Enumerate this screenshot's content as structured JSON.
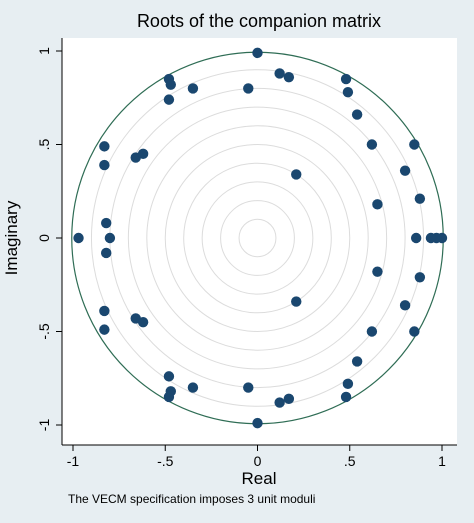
{
  "chart_data": {
    "type": "scatter",
    "title": "Roots of the companion matrix",
    "xlabel": "Real",
    "ylabel": "Imaginary",
    "note": "The VECM specification imposes 3 unit moduli",
    "xlim": [
      -1,
      1
    ],
    "ylim": [
      -1,
      1
    ],
    "x_ticks": [
      "-1",
      "-.5",
      "0",
      ".5",
      "1"
    ],
    "x_tick_values": [
      -1,
      -0.5,
      0,
      0.5,
      1
    ],
    "y_ticks": [
      "-1",
      "-.5",
      "0",
      ".5",
      "1"
    ],
    "y_tick_values": [
      -1,
      -0.5,
      0,
      0.5,
      1
    ],
    "unit_circle": true,
    "reference_circle_radii": [
      0.1,
      0.2,
      0.3,
      0.4,
      0.5,
      0.6,
      0.7,
      0.8,
      0.9
    ],
    "colors": {
      "background": "#e7eef2",
      "plot_area": "#ffffff",
      "marker": "#1a476f",
      "unit_circle": "#2f6d55",
      "reference_circles": "#dcdcdc"
    },
    "points": [
      {
        "x": 0.0,
        "y": 0.99
      },
      {
        "x": 0.0,
        "y": -0.99
      },
      {
        "x": 1.0,
        "y": 0.0
      },
      {
        "x": 0.97,
        "y": 0.0
      },
      {
        "x": 0.94,
        "y": 0.0
      },
      {
        "x": 0.86,
        "y": 0.0
      },
      {
        "x": -0.97,
        "y": 0.0
      },
      {
        "x": -0.8,
        "y": 0.0
      },
      {
        "x": 0.12,
        "y": 0.88
      },
      {
        "x": 0.12,
        "y": -0.88
      },
      {
        "x": 0.17,
        "y": 0.86
      },
      {
        "x": 0.17,
        "y": -0.86
      },
      {
        "x": -0.05,
        "y": 0.8
      },
      {
        "x": -0.05,
        "y": -0.8
      },
      {
        "x": -0.35,
        "y": 0.8
      },
      {
        "x": -0.35,
        "y": -0.8
      },
      {
        "x": -0.48,
        "y": 0.85
      },
      {
        "x": -0.48,
        "y": -0.85
      },
      {
        "x": -0.47,
        "y": 0.82
      },
      {
        "x": -0.47,
        "y": -0.82
      },
      {
        "x": -0.48,
        "y": 0.74
      },
      {
        "x": -0.48,
        "y": -0.74
      },
      {
        "x": 0.48,
        "y": 0.85
      },
      {
        "x": 0.48,
        "y": -0.85
      },
      {
        "x": 0.49,
        "y": 0.78
      },
      {
        "x": 0.49,
        "y": -0.78
      },
      {
        "x": 0.54,
        "y": 0.66
      },
      {
        "x": 0.54,
        "y": -0.66
      },
      {
        "x": 0.62,
        "y": 0.5
      },
      {
        "x": 0.62,
        "y": -0.5
      },
      {
        "x": 0.85,
        "y": 0.5
      },
      {
        "x": 0.85,
        "y": -0.5
      },
      {
        "x": 0.8,
        "y": 0.36
      },
      {
        "x": 0.8,
        "y": -0.36
      },
      {
        "x": 0.88,
        "y": 0.21
      },
      {
        "x": 0.88,
        "y": -0.21
      },
      {
        "x": 0.65,
        "y": 0.18
      },
      {
        "x": 0.65,
        "y": -0.18
      },
      {
        "x": 0.21,
        "y": 0.34
      },
      {
        "x": 0.21,
        "y": -0.34
      },
      {
        "x": -0.66,
        "y": 0.43
      },
      {
        "x": -0.66,
        "y": -0.43
      },
      {
        "x": -0.62,
        "y": 0.45
      },
      {
        "x": -0.62,
        "y": -0.45
      },
      {
        "x": -0.83,
        "y": 0.49
      },
      {
        "x": -0.83,
        "y": -0.49
      },
      {
        "x": -0.83,
        "y": 0.39
      },
      {
        "x": -0.83,
        "y": -0.39
      },
      {
        "x": -0.82,
        "y": 0.08
      },
      {
        "x": -0.82,
        "y": -0.08
      }
    ]
  }
}
